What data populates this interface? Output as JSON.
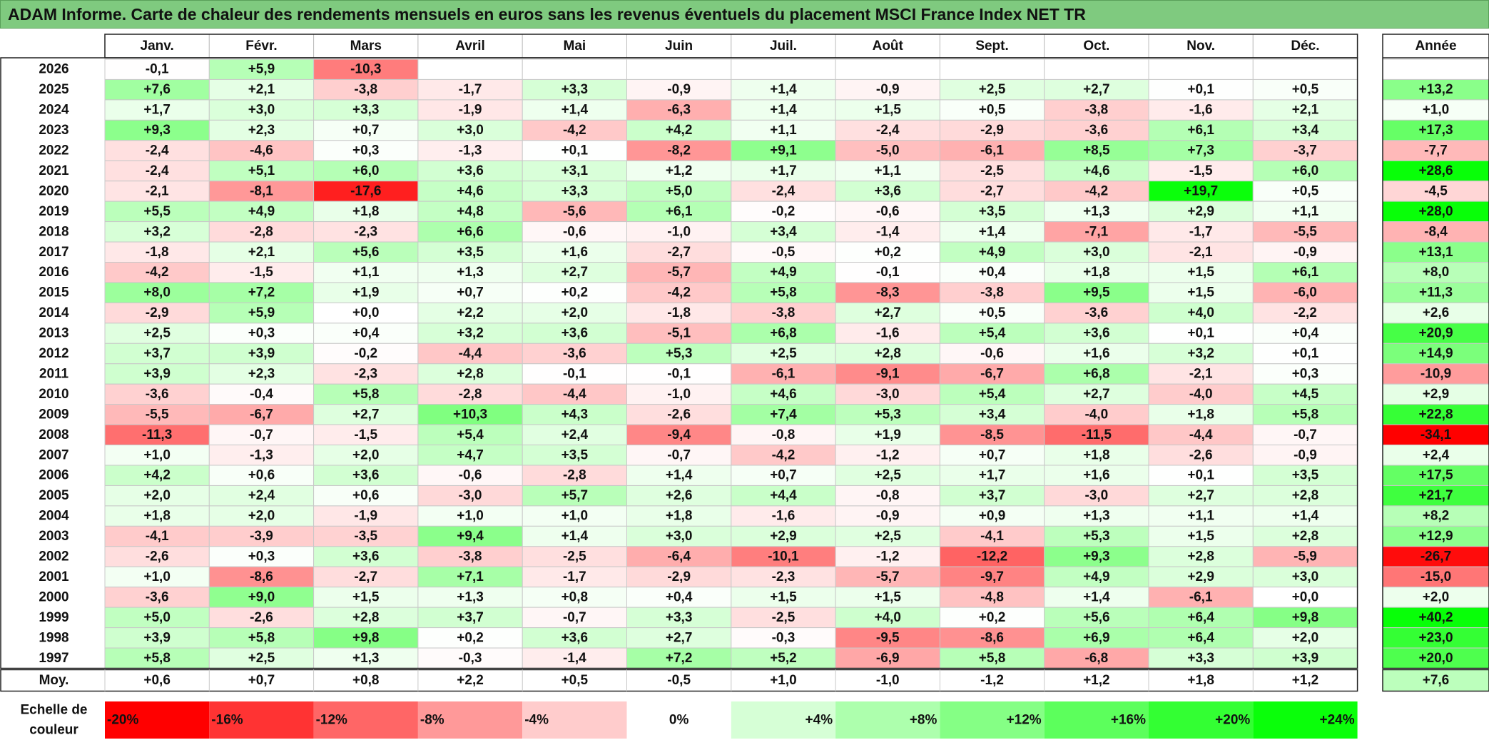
{
  "title": "ADAM Informe. Carte de chaleur des rendements mensuels en euros sans les revenus éventuels du placement MSCI France Index NET TR",
  "chart_data": {
    "type": "heatmap",
    "title": "ADAM Informe. Carte de chaleur des rendements mensuels en euros sans les revenus éventuels du placement MSCI France Index NET TR",
    "months": [
      "Janv.",
      "Févr.",
      "Mars",
      "Avril",
      "Mai",
      "Juin",
      "Juil.",
      "Août",
      "Sept.",
      "Oct.",
      "Nov.",
      "Déc."
    ],
    "annual_header": "Année",
    "rows": [
      {
        "year": "2026",
        "values": [
          "-0,1",
          "+5,9",
          "-10,3",
          "",
          "",
          "",
          "",
          "",
          "",
          "",
          "",
          ""
        ],
        "annual": ""
      },
      {
        "year": "2025",
        "values": [
          "+7,6",
          "+2,1",
          "-3,8",
          "-1,7",
          "+3,3",
          "-0,9",
          "+1,4",
          "-0,9",
          "+2,5",
          "+2,7",
          "+0,1",
          "+0,5"
        ],
        "annual": "+13,2"
      },
      {
        "year": "2024",
        "values": [
          "+1,7",
          "+3,0",
          "+3,3",
          "-1,9",
          "+1,4",
          "-6,3",
          "+1,4",
          "+1,5",
          "+0,5",
          "-3,8",
          "-1,6",
          "+2,1"
        ],
        "annual": "+1,0"
      },
      {
        "year": "2023",
        "values": [
          "+9,3",
          "+2,3",
          "+0,7",
          "+3,0",
          "-4,2",
          "+4,2",
          "+1,1",
          "-2,4",
          "-2,9",
          "-3,6",
          "+6,1",
          "+3,4"
        ],
        "annual": "+17,3"
      },
      {
        "year": "2022",
        "values": [
          "-2,4",
          "-4,6",
          "+0,3",
          "-1,3",
          "+0,1",
          "-8,2",
          "+9,1",
          "-5,0",
          "-6,1",
          "+8,5",
          "+7,3",
          "-3,7"
        ],
        "annual": "-7,7"
      },
      {
        "year": "2021",
        "values": [
          "-2,4",
          "+5,1",
          "+6,0",
          "+3,6",
          "+3,1",
          "+1,2",
          "+1,7",
          "+1,1",
          "-2,5",
          "+4,6",
          "-1,5",
          "+6,0"
        ],
        "annual": "+28,6"
      },
      {
        "year": "2020",
        "values": [
          "-2,1",
          "-8,1",
          "-17,6",
          "+4,6",
          "+3,3",
          "+5,0",
          "-2,4",
          "+3,6",
          "-2,7",
          "-4,2",
          "+19,7",
          "+0,5"
        ],
        "annual": "-4,5"
      },
      {
        "year": "2019",
        "values": [
          "+5,5",
          "+4,9",
          "+1,8",
          "+4,8",
          "-5,6",
          "+6,1",
          "-0,2",
          "-0,6",
          "+3,5",
          "+1,3",
          "+2,9",
          "+1,1"
        ],
        "annual": "+28,0"
      },
      {
        "year": "2018",
        "values": [
          "+3,2",
          "-2,8",
          "-2,3",
          "+6,6",
          "-0,6",
          "-1,0",
          "+3,4",
          "-1,4",
          "+1,4",
          "-7,1",
          "-1,7",
          "-5,5"
        ],
        "annual": "-8,4"
      },
      {
        "year": "2017",
        "values": [
          "-1,8",
          "+2,1",
          "+5,6",
          "+3,5",
          "+1,6",
          "-2,7",
          "-0,5",
          "+0,2",
          "+4,9",
          "+3,0",
          "-2,1",
          "-0,9"
        ],
        "annual": "+13,1"
      },
      {
        "year": "2016",
        "values": [
          "-4,2",
          "-1,5",
          "+1,1",
          "+1,3",
          "+2,7",
          "-5,7",
          "+4,9",
          "-0,1",
          "+0,4",
          "+1,8",
          "+1,5",
          "+6,1"
        ],
        "annual": "+8,0"
      },
      {
        "year": "2015",
        "values": [
          "+8,0",
          "+7,2",
          "+1,9",
          "+0,7",
          "+0,2",
          "-4,2",
          "+5,8",
          "-8,3",
          "-3,8",
          "+9,5",
          "+1,5",
          "-6,0"
        ],
        "annual": "+11,3"
      },
      {
        "year": "2014",
        "values": [
          "-2,9",
          "+5,9",
          "+0,0",
          "+2,2",
          "+2,0",
          "-1,8",
          "-3,8",
          "+2,7",
          "+0,5",
          "-3,6",
          "+4,0",
          "-2,2"
        ],
        "annual": "+2,6"
      },
      {
        "year": "2013",
        "values": [
          "+2,5",
          "+0,3",
          "+0,4",
          "+3,2",
          "+3,6",
          "-5,1",
          "+6,8",
          "-1,6",
          "+5,4",
          "+3,6",
          "+0,1",
          "+0,4"
        ],
        "annual": "+20,9"
      },
      {
        "year": "2012",
        "values": [
          "+3,7",
          "+3,9",
          "-0,2",
          "-4,4",
          "-3,6",
          "+5,3",
          "+2,5",
          "+2,8",
          "-0,6",
          "+1,6",
          "+3,2",
          "+0,1"
        ],
        "annual": "+14,9"
      },
      {
        "year": "2011",
        "values": [
          "+3,9",
          "+2,3",
          "-2,3",
          "+2,8",
          "-0,1",
          "-0,1",
          "-6,1",
          "-9,1",
          "-6,7",
          "+6,8",
          "-2,1",
          "+0,3"
        ],
        "annual": "-10,9"
      },
      {
        "year": "2010",
        "values": [
          "-3,6",
          "-0,4",
          "+5,8",
          "-2,8",
          "-4,4",
          "-1,0",
          "+4,6",
          "-3,0",
          "+5,4",
          "+2,7",
          "-4,0",
          "+4,5"
        ],
        "annual": "+2,9"
      },
      {
        "year": "2009",
        "values": [
          "-5,5",
          "-6,7",
          "+2,7",
          "+10,3",
          "+4,3",
          "-2,6",
          "+7,4",
          "+5,3",
          "+3,4",
          "-4,0",
          "+1,8",
          "+5,8"
        ],
        "annual": "+22,8"
      },
      {
        "year": "2008",
        "values": [
          "-11,3",
          "-0,7",
          "-1,5",
          "+5,4",
          "+2,4",
          "-9,4",
          "-0,8",
          "+1,9",
          "-8,5",
          "-11,5",
          "-4,4",
          "-0,7"
        ],
        "annual": "-34,1"
      },
      {
        "year": "2007",
        "values": [
          "+1,0",
          "-1,3",
          "+2,0",
          "+4,7",
          "+3,5",
          "-0,7",
          "-4,2",
          "-1,2",
          "+0,7",
          "+1,8",
          "-2,6",
          "-0,9"
        ],
        "annual": "+2,4"
      },
      {
        "year": "2006",
        "values": [
          "+4,2",
          "+0,6",
          "+3,6",
          "-0,6",
          "-2,8",
          "+1,4",
          "+0,7",
          "+2,5",
          "+1,7",
          "+1,6",
          "+0,1",
          "+3,5"
        ],
        "annual": "+17,5"
      },
      {
        "year": "2005",
        "values": [
          "+2,0",
          "+2,4",
          "+0,6",
          "-3,0",
          "+5,7",
          "+2,6",
          "+4,4",
          "-0,8",
          "+3,7",
          "-3,0",
          "+2,7",
          "+2,8"
        ],
        "annual": "+21,7"
      },
      {
        "year": "2004",
        "values": [
          "+1,8",
          "+2,0",
          "-1,9",
          "+1,0",
          "+1,0",
          "+1,8",
          "-1,6",
          "-0,9",
          "+0,9",
          "+1,3",
          "+1,1",
          "+1,4"
        ],
        "annual": "+8,2"
      },
      {
        "year": "2003",
        "values": [
          "-4,1",
          "-3,9",
          "-3,5",
          "+9,4",
          "+1,4",
          "+3,0",
          "+2,9",
          "+2,5",
          "-4,1",
          "+5,3",
          "+1,5",
          "+2,8"
        ],
        "annual": "+12,9"
      },
      {
        "year": "2002",
        "values": [
          "-2,6",
          "+0,3",
          "+3,6",
          "-3,8",
          "-2,5",
          "-6,4",
          "-10,1",
          "-1,2",
          "-12,2",
          "+9,3",
          "+2,8",
          "-5,9"
        ],
        "annual": "-26,7"
      },
      {
        "year": "2001",
        "values": [
          "+1,0",
          "-8,6",
          "-2,7",
          "+7,1",
          "-1,7",
          "-2,9",
          "-2,3",
          "-5,7",
          "-9,7",
          "+4,9",
          "+2,9",
          "+3,0"
        ],
        "annual": "-15,0"
      },
      {
        "year": "2000",
        "values": [
          "-3,6",
          "+9,0",
          "+1,5",
          "+1,3",
          "+0,8",
          "+0,4",
          "+1,5",
          "+1,5",
          "-4,8",
          "+1,4",
          "-6,1",
          "+0,0"
        ],
        "annual": "+2,0"
      },
      {
        "year": "1999",
        "values": [
          "+5,0",
          "-2,6",
          "+2,8",
          "+3,7",
          "-0,7",
          "+3,3",
          "-2,5",
          "+4,0",
          "+0,2",
          "+5,6",
          "+6,4",
          "+9,8"
        ],
        "annual": "+40,2"
      },
      {
        "year": "1998",
        "values": [
          "+3,9",
          "+5,8",
          "+9,8",
          "+0,2",
          "+3,6",
          "+2,7",
          "-0,3",
          "-9,5",
          "-8,6",
          "+6,9",
          "+6,4",
          "+2,0"
        ],
        "annual": "+23,0"
      },
      {
        "year": "1997",
        "values": [
          "+5,8",
          "+2,5",
          "+1,3",
          "-0,3",
          "-1,4",
          "+7,2",
          "+5,2",
          "-6,9",
          "+5,8",
          "-6,8",
          "+3,3",
          "+3,9"
        ],
        "annual": "+20,0"
      }
    ],
    "average": {
      "label": "Moy.",
      "values": [
        "+0,6",
        "+0,7",
        "+0,8",
        "+2,2",
        "+0,5",
        "-0,5",
        "+1,0",
        "-1,0",
        "-1,2",
        "+1,2",
        "+1,8",
        "+1,2"
      ],
      "annual": "+7,6"
    },
    "legend": {
      "label_line1": "Echelle de",
      "label_line2": "couleur",
      "items": [
        {
          "label": "-20%",
          "color": "#ff0000"
        },
        {
          "label": "-16%",
          "color": "#ff3333"
        },
        {
          "label": "-12%",
          "color": "#ff6666"
        },
        {
          "label": "-8%",
          "color": "#ff9999"
        },
        {
          "label": "-4%",
          "color": "#ffcccc"
        },
        {
          "label": "0%",
          "color": "#ffffff"
        },
        {
          "label": "+4%",
          "color": "#d6ffd6"
        },
        {
          "label": "+8%",
          "color": "#adffad"
        },
        {
          "label": "+12%",
          "color": "#85ff85"
        },
        {
          "label": "+16%",
          "color": "#5cff5c"
        },
        {
          "label": "+20%",
          "color": "#33ff33"
        },
        {
          "label": "+24%",
          "color": "#0aff0a"
        }
      ]
    }
  }
}
